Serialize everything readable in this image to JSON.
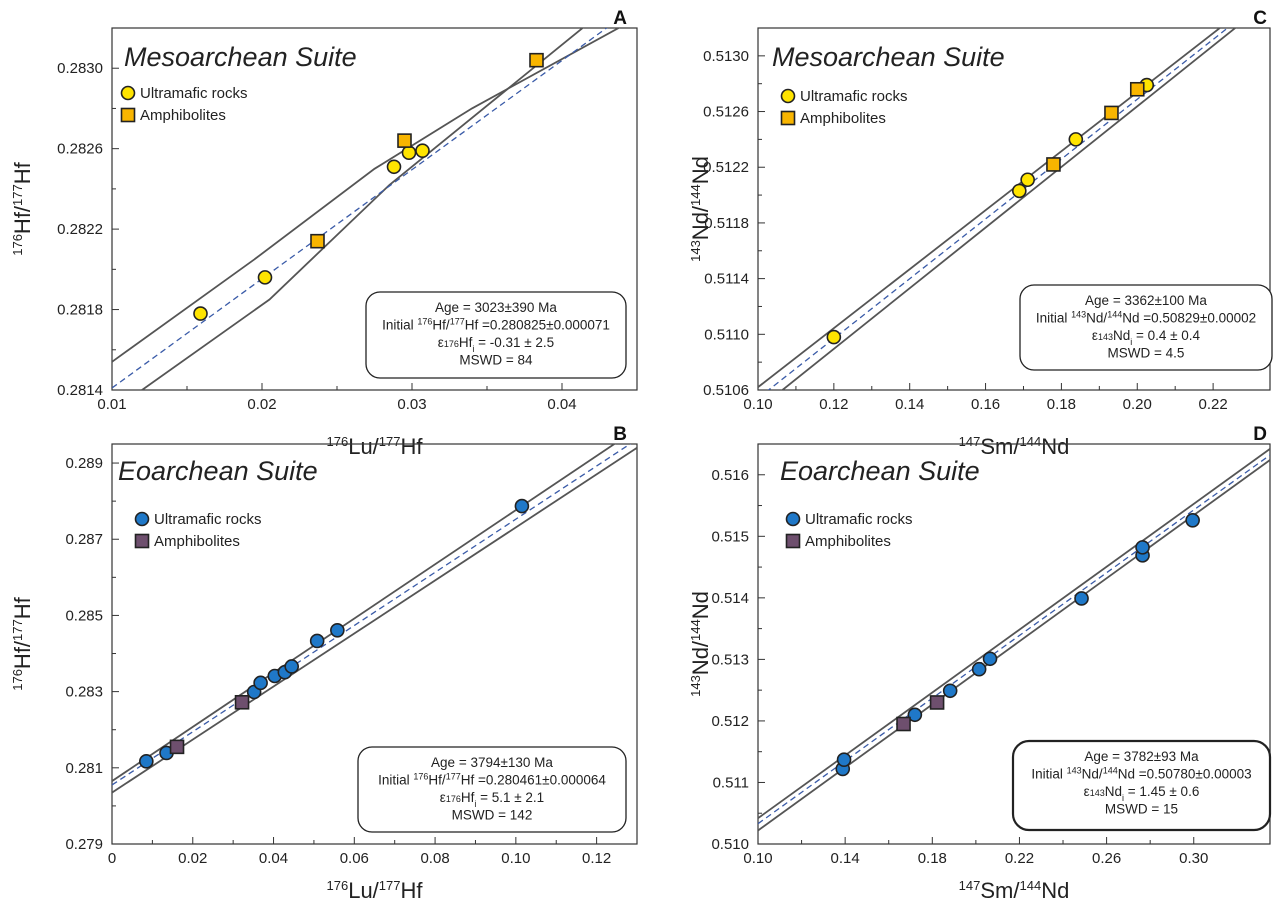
{
  "chart_data": [
    {
      "id": "A",
      "type": "scatter",
      "letter": "A",
      "title": "Mesoarchean Suite",
      "xlabel": {
        "sup": "176",
        "base": "Lu/",
        "sup2": "177",
        "base2": "Hf"
      },
      "ylabel": {
        "sup": "176",
        "base": "Hf/",
        "sup2": "177",
        "base2": "Hf"
      },
      "xlim": [
        0.01,
        0.045
      ],
      "ylim": [
        0.2814,
        0.2832
      ],
      "xticks": [
        "0.01",
        "0.02",
        "0.03",
        "0.04"
      ],
      "xtick_values": [
        0.01,
        0.02,
        0.03,
        0.04
      ],
      "yticks": [
        "0.2814",
        "0.2818",
        "0.2822",
        "0.2826",
        "0.2830"
      ],
      "ytick_values": [
        0.2814,
        0.2818,
        0.2822,
        0.2826,
        0.283
      ],
      "legend": {
        "position": "top-left",
        "circle_label": "Ultramafic rocks",
        "square_label": "Amphibolites"
      },
      "circle_color": "#ffe400",
      "square_color": "#f8b500",
      "series": [
        {
          "name": "Ultramafic rocks",
          "marker": "circle",
          "points": [
            [
              0.0159,
              0.28178
            ],
            [
              0.0202,
              0.28196
            ],
            [
              0.0288,
              0.28251
            ],
            [
              0.0298,
              0.28258
            ],
            [
              0.0307,
              0.28259
            ]
          ]
        },
        {
          "name": "Amphibolites",
          "marker": "square",
          "points": [
            [
              0.0237,
              0.28214
            ],
            [
              0.0295,
              0.28264
            ],
            [
              0.0383,
              0.28304
            ]
          ]
        }
      ],
      "isochron": {
        "x0": 0.01,
        "y0": 0.28141,
        "x1": 0.045,
        "y1": 0.28331
      },
      "envelope": {
        "pivot_x": 0.0255,
        "upper": [
          [
            0.01,
            0.28154
          ],
          [
            0.0195,
            0.28205
          ],
          [
            0.0275,
            0.2825
          ],
          [
            0.034,
            0.2828
          ],
          [
            0.045,
            0.28325
          ]
        ],
        "lower": [
          [
            0.012,
            0.2814
          ],
          [
            0.0205,
            0.28185
          ],
          [
            0.0285,
            0.28242
          ],
          [
            0.045,
            0.28342
          ]
        ]
      },
      "stats": {
        "position": "bottom-right",
        "age": "Age = 3023±390 Ma",
        "initial_pre": "Initial ",
        "initial_mid": "Hf/",
        "initial_post": "Hf =0.280825±0.000071",
        "initial_sup1": "176",
        "initial_sup2": "177",
        "eps_pre": "ε",
        "eps_sup": "176",
        "eps_mid": "Hf",
        "eps_sub": "i",
        "eps_post": " = -0.31 ± 2.5",
        "mswd": "MSWD = 84"
      }
    },
    {
      "id": "C",
      "type": "scatter",
      "letter": "C",
      "title": "Mesoarchean Suite",
      "xlabel": {
        "sup": "147",
        "base": "Sm/",
        "sup2": "144",
        "base2": "Nd"
      },
      "ylabel": {
        "sup": "143",
        "base": "Nd/",
        "sup2": "144",
        "base2": "Nd"
      },
      "xlim": [
        0.1,
        0.235
      ],
      "ylim": [
        0.5106,
        0.5132
      ],
      "xticks": [
        "0.10",
        "0.12",
        "0.14",
        "0.16",
        "0.18",
        "0.20",
        "0.22"
      ],
      "xtick_values": [
        0.1,
        0.12,
        0.14,
        0.16,
        0.18,
        0.2,
        0.22
      ],
      "yticks": [
        "0.5106",
        "0.5110",
        "0.5114",
        "0.5118",
        "0.5122",
        "0.5126",
        "0.5130"
      ],
      "ytick_values": [
        0.5106,
        0.511,
        0.5114,
        0.5118,
        0.5122,
        0.5126,
        0.513
      ],
      "legend": {
        "position": "top-left",
        "circle_label": "Ultramafic rocks",
        "square_label": "Amphibolites"
      },
      "circle_color": "#ffe400",
      "square_color": "#f8b500",
      "series": [
        {
          "name": "Ultramafic rocks",
          "marker": "circle",
          "points": [
            [
              0.12,
              0.51098
            ],
            [
              0.1689,
              0.51203
            ],
            [
              0.1711,
              0.51211
            ],
            [
              0.1838,
              0.5124
            ],
            [
              0.2025,
              0.51279
            ]
          ]
        },
        {
          "name": "Amphibolites",
          "marker": "square",
          "points": [
            [
              0.1779,
              0.51222
            ],
            [
              0.1932,
              0.51259
            ],
            [
              0.2,
              0.51276
            ]
          ]
        }
      ],
      "isochron": {
        "x0": 0.1,
        "y0": 0.51054,
        "x1": 0.235,
        "y1": 0.51344
      },
      "envelope": {
        "pivot_x": 0.17,
        "upper": [
          [
            0.1,
            0.51062
          ],
          [
            0.235,
            0.51348
          ]
        ],
        "lower": [
          [
            0.1,
            0.51046
          ],
          [
            0.235,
            0.5134
          ]
        ]
      },
      "stats": {
        "position": "bottom-right",
        "age": "Age = 3362±100 Ma",
        "initial_pre": "Initial ",
        "initial_mid": "Nd/",
        "initial_post": "Nd =0.50829±0.00002",
        "initial_sup1": "143",
        "initial_sup2": "144",
        "eps_pre": "ε",
        "eps_sup": "143",
        "eps_mid": "Nd",
        "eps_sub": "i",
        "eps_post": " = 0.4 ± 0.4",
        "mswd": "MSWD = 4.5"
      }
    },
    {
      "id": "B",
      "type": "scatter",
      "letter": "B",
      "title": "Eoarchean Suite",
      "xlabel": {
        "sup": "176",
        "base": "Lu/",
        "sup2": "177",
        "base2": "Hf"
      },
      "ylabel": {
        "sup": "176",
        "base": "Hf/",
        "sup2": "177",
        "base2": "Hf"
      },
      "xlim": [
        0,
        0.13
      ],
      "ylim": [
        0.279,
        0.2895
      ],
      "xticks": [
        "0",
        "0.02",
        "0.04",
        "0.06",
        "0.08",
        "0.10",
        "0.12"
      ],
      "xtick_values": [
        0,
        0.02,
        0.04,
        0.06,
        0.08,
        0.1,
        0.12
      ],
      "yticks": [
        "0.279",
        "0.281",
        "0.283",
        "0.285",
        "0.287",
        "0.289"
      ],
      "ytick_values": [
        0.279,
        0.281,
        0.283,
        0.285,
        0.287,
        0.289
      ],
      "legend": {
        "position": "top-left",
        "circle_label": "Ultramafic rocks",
        "square_label": "Amphibolites"
      },
      "circle_color": "#1f78c8",
      "square_color": "#6e4f6e",
      "series": [
        {
          "name": "Ultramafic rocks",
          "marker": "circle",
          "points": [
            [
              0.0085,
              0.28117
            ],
            [
              0.0135,
              0.28139
            ],
            [
              0.0352,
              0.28299
            ],
            [
              0.0368,
              0.28323
            ],
            [
              0.0403,
              0.28341
            ],
            [
              0.0428,
              0.28351
            ],
            [
              0.0445,
              0.28366
            ],
            [
              0.0508,
              0.28433
            ],
            [
              0.0558,
              0.28461
            ],
            [
              0.1015,
              0.28787
            ]
          ]
        },
        {
          "name": "Amphibolites",
          "marker": "square",
          "points": [
            [
              0.0161,
              0.28155
            ],
            [
              0.0322,
              0.28272
            ]
          ]
        }
      ],
      "isochron": {
        "x0": 0,
        "y0": 0.28055,
        "x1": 0.13,
        "y1": 0.28962
      },
      "envelope": {
        "pivot_x": 0.045,
        "upper": [
          [
            0,
            0.28065
          ],
          [
            0.13,
            0.2899
          ]
        ],
        "lower": [
          [
            0,
            0.28035
          ],
          [
            0.13,
            0.2894
          ]
        ]
      },
      "stats": {
        "position": "bottom-right",
        "age": "Age = 3794±130 Ma",
        "initial_pre": "Initial ",
        "initial_mid": "Hf/",
        "initial_post": "Hf =0.280461±0.000064",
        "initial_sup1": "176",
        "initial_sup2": "177",
        "eps_pre": "ε",
        "eps_sup": "176",
        "eps_mid": "Hf",
        "eps_sub": "i",
        "eps_post": " = 5.1 ± 2.1",
        "mswd": "MSWD = 142"
      }
    },
    {
      "id": "D",
      "type": "scatter",
      "letter": "D",
      "title": "Eoarchean Suite",
      "xlabel": {
        "sup": "147",
        "base": "Sm/",
        "sup2": "144",
        "base2": "Nd"
      },
      "ylabel": {
        "sup": "143",
        "base": "Nd/",
        "sup2": "144",
        "base2": "Nd"
      },
      "xlim": [
        0.1,
        0.335
      ],
      "ylim": [
        0.51,
        0.5165
      ],
      "xticks": [
        "0.10",
        "0.14",
        "0.18",
        "0.22",
        "0.26",
        "0.30"
      ],
      "xtick_values": [
        0.1,
        0.14,
        0.18,
        0.22,
        0.26,
        0.3
      ],
      "yticks": [
        "0.510",
        "0.511",
        "0.512",
        "0.513",
        "0.514",
        "0.515",
        "0.516"
      ],
      "ytick_values": [
        0.51,
        0.511,
        0.512,
        0.513,
        0.514,
        0.515,
        0.516
      ],
      "legend": {
        "position": "top-left",
        "circle_label": "Ultramafic rocks",
        "square_label": "Amphibolites"
      },
      "circle_color": "#1f78c8",
      "square_color": "#6e4f6e",
      "series": [
        {
          "name": "Ultramafic rocks",
          "marker": "circle",
          "points": [
            [
              0.1389,
              0.51122
            ],
            [
              0.1395,
              0.51137
            ],
            [
              0.172,
              0.5121
            ],
            [
              0.1882,
              0.51249
            ],
            [
              0.2015,
              0.51284
            ],
            [
              0.2065,
              0.51301
            ],
            [
              0.2485,
              0.51399
            ],
            [
              0.2765,
              0.51469
            ],
            [
              0.2765,
              0.51482
            ],
            [
              0.2995,
              0.51526
            ]
          ]
        },
        {
          "name": "Amphibolites",
          "marker": "square",
          "points": [
            [
              0.1668,
              0.51195
            ],
            [
              0.1822,
              0.5123
            ]
          ]
        }
      ],
      "isochron": {
        "x0": 0.1,
        "y0": 0.51033,
        "x1": 0.335,
        "y1": 0.51632
      },
      "envelope": {
        "pivot_x": 0.22,
        "upper": [
          [
            0.1,
            0.51042
          ],
          [
            0.335,
            0.51642
          ]
        ],
        "lower": [
          [
            0.1,
            0.51022
          ],
          [
            0.335,
            0.51624
          ]
        ]
      },
      "stats": {
        "position": "bottom-right",
        "age": "Age = 3782±93 Ma",
        "initial_pre": "Initial ",
        "initial_mid": "Nd/",
        "initial_post": "Nd =0.50780±0.00003",
        "initial_sup1": "143",
        "initial_sup2": "144",
        "eps_pre": "ε",
        "eps_sup": "143",
        "eps_mid": "Nd",
        "eps_sub": "i",
        "eps_post": " = 1.45 ± 0.6",
        "mswd": "MSWD = 15"
      }
    }
  ]
}
